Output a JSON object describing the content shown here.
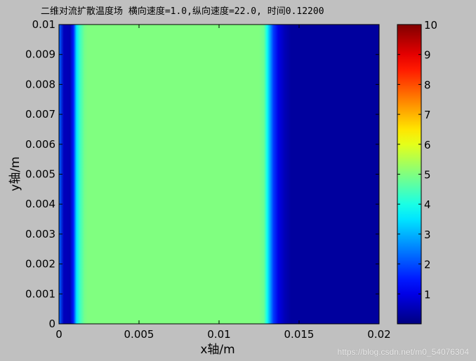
{
  "chart_data": {
    "type": "heatmap",
    "title": "二维对流扩散温度场  横向速度=1.0,纵向速度=22.0, 时间0.12200",
    "xlabel": "x轴/m",
    "ylabel": "y轴/m",
    "xlim": [
      0,
      0.02
    ],
    "ylim": [
      0,
      0.01
    ],
    "x_ticks": [
      0,
      0.005,
      0.01,
      0.015,
      0.02
    ],
    "x_tick_labels": [
      "0",
      "0.005",
      "0.01",
      "0.015",
      "0.02"
    ],
    "y_ticks": [
      0,
      0.001,
      0.002,
      0.003,
      0.004,
      0.005,
      0.006,
      0.007,
      0.008,
      0.009,
      0.01
    ],
    "y_tick_labels": [
      "0",
      "0.001",
      "0.002",
      "0.003",
      "0.004",
      "0.005",
      "0.006",
      "0.007",
      "0.008",
      "0.009",
      "0.01"
    ],
    "colorbar": {
      "range": [
        0,
        10
      ],
      "colormap": "jet",
      "ticks": [
        1,
        2,
        3,
        4,
        5,
        6,
        7,
        8,
        9,
        10
      ],
      "tick_labels": [
        "1",
        "2",
        "3",
        "4",
        "5",
        "6",
        "7",
        "8",
        "9",
        "10"
      ]
    },
    "profile_x": {
      "x": [
        0,
        0.0003,
        0.0007,
        0.0009,
        0.0011,
        0.0013,
        0.0016,
        0.0018,
        0.002,
        0.0125,
        0.0128,
        0.013,
        0.0132,
        0.0134,
        0.0137,
        0.0141,
        0.0145,
        0.02
      ],
      "value": [
        2.3,
        0.6,
        0.5,
        1.5,
        3.5,
        4.3,
        4.9,
        5.0,
        5.0,
        5.0,
        4.8,
        3.9,
        2.8,
        1.8,
        1.0,
        0.55,
        0.3,
        0.3
      ]
    }
  },
  "watermark": "https://blog.csdn.net/m0_54076304"
}
